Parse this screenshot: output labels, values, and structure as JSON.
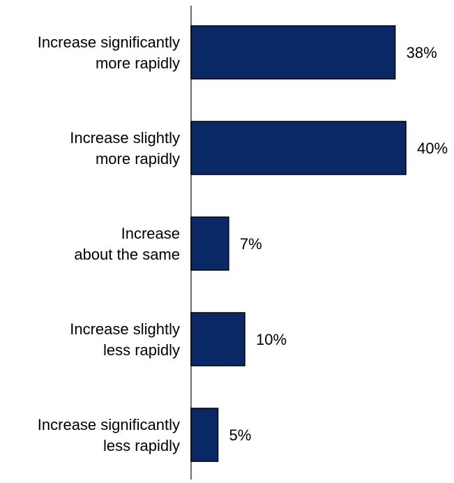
{
  "chart_data": {
    "type": "bar",
    "orientation": "horizontal",
    "categories": [
      [
        "Increase significantly",
        "more rapidly"
      ],
      [
        "Increase slightly",
        "more rapidly"
      ],
      [
        "Increase",
        "about the same"
      ],
      [
        "Increase slightly",
        "less rapidly"
      ],
      [
        "Increase significantly",
        "less rapidly"
      ]
    ],
    "values": [
      38,
      40,
      7,
      10,
      5
    ],
    "value_labels": [
      "38%",
      "40%",
      "7%",
      "10%",
      "5%"
    ],
    "unit": "%",
    "xlim": [
      0,
      45
    ],
    "grid": false,
    "legend": "none",
    "title": "",
    "xlabel": "",
    "ylabel": ""
  },
  "colors": {
    "bar_fill": "#0b2866",
    "bar_stroke": "#000000",
    "axis": "#6f6f6f",
    "text": "#000000"
  }
}
